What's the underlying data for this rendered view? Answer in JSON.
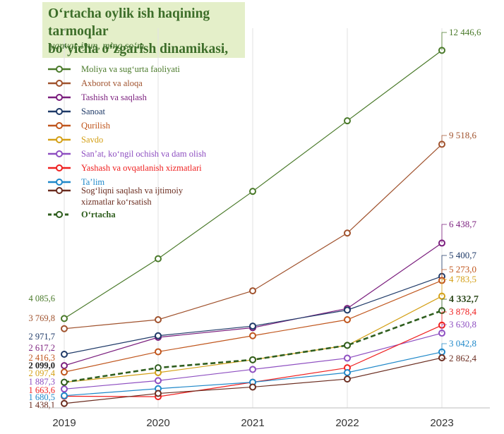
{
  "title": {
    "main": "O‘rtacha oylik ish haqining tarmoqlar\nbo‘yicha o‘zgarish dinamikasi,",
    "subtitle": "yanvar-iyun, ming so‘m"
  },
  "chart_data": {
    "type": "line",
    "title": "O‘rtacha oylik ish haqining tarmoqlar bo‘yicha o‘zgarish dinamikasi,",
    "subtitle": "yanvar-iyun, ming so‘m",
    "x": [
      "2019",
      "2020",
      "2021",
      "2022",
      "2023"
    ],
    "ylim": [
      1300,
      13400
    ],
    "grid": "vertical",
    "legend_position": "top-left",
    "series": [
      {
        "id": "moliya",
        "name": "Moliya va sug‘urta faoliyati",
        "color": "#4a7a2a",
        "values": [
          4085.6,
          5950,
          8050,
          10250,
          12446.6
        ],
        "start_label": "4 085,6",
        "end_label": "12 446,6"
      },
      {
        "id": "axborot",
        "name": "Axborot va aloqa",
        "color": "#a0522d",
        "values": [
          3769.8,
          4050,
          4950,
          6750,
          9518.6
        ],
        "start_label": "3 769,8",
        "end_label": "9 518,6"
      },
      {
        "id": "tashish",
        "name": "Tashish va saqlash",
        "color": "#7b1f7e",
        "values": [
          2617.2,
          3500,
          3800,
          4400,
          6438.7
        ],
        "start_label": "2 617,2",
        "end_label": "6 438,7"
      },
      {
        "id": "sanoat",
        "name": "Sanoat",
        "color": "#1f3a68",
        "values": [
          2971.7,
          3550,
          3850,
          4350,
          5400.7
        ],
        "start_label": "2 971,7",
        "end_label": "5 400,7"
      },
      {
        "id": "qurilish",
        "name": "Qurilish",
        "color": "#c0561d",
        "values": [
          2416.3,
          3050,
          3550,
          4050,
          5273.0
        ],
        "start_label": "2 416,3",
        "end_label": "5 273,0"
      },
      {
        "id": "savdo",
        "name": "Savdo",
        "color": "#d4a017",
        "values": [
          2097.4,
          2400,
          2800,
          3250,
          4783.5
        ],
        "start_label": "2 097,4",
        "end_label": "4 783,5"
      },
      {
        "id": "sanat",
        "name": "San’at, ko‘ngil ochish va dam olish",
        "color": "#8e4fc1",
        "values": [
          1887.3,
          2150,
          2500,
          2850,
          3630.8
        ],
        "start_label": "1 887,3",
        "end_label": "3 630,8"
      },
      {
        "id": "yashash",
        "name": "Yashash va ovqatlanish xizmatlari",
        "color": "#ef2020",
        "values": [
          1663.6,
          1650,
          2100,
          2550,
          3878.4
        ],
        "start_label": "1 663,6",
        "end_label": "3 878,4"
      },
      {
        "id": "talim",
        "name": "Ta’lim",
        "color": "#1f88c9",
        "values": [
          1680.5,
          1900,
          2100,
          2400,
          3042.8
        ],
        "start_label": "1 680,5",
        "end_label": "3 042,8"
      },
      {
        "id": "sogliq",
        "name": "Sog‘liqni saqlash va ijtimoiy xizmatlar ko‘rsatish",
        "color": "#6b2d20",
        "values": [
          1438.1,
          1750,
          1950,
          2200,
          2862.4
        ],
        "start_label": "1 438,1",
        "end_label": "2 862,4"
      },
      {
        "id": "ortacha",
        "name": "O‘rtacha",
        "color": "#2f5e1e",
        "dashed": true,
        "bold_labels": true,
        "values": [
          2099.0,
          2550,
          2800,
          3250,
          4332.7
        ],
        "start_label": "2 099,0",
        "end_label": "4 332,7"
      }
    ]
  }
}
